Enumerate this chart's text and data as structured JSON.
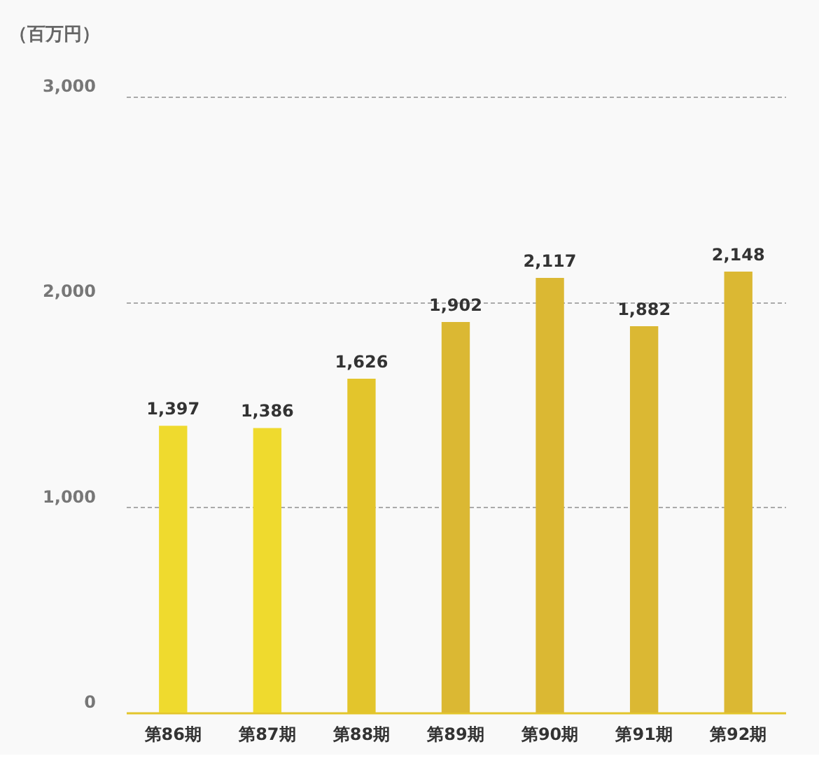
{
  "chart_data": {
    "type": "bar",
    "ylabel": "（百万円）",
    "categories": [
      "第86期",
      "第87期",
      "第88期",
      "第89期",
      "第90期",
      "第91期",
      "第92期"
    ],
    "values": [
      1397,
      1386,
      1626,
      1902,
      2117,
      1882,
      2148
    ],
    "value_labels": [
      "1,397",
      "1,386",
      "1,626",
      "1,902",
      "2,117",
      "1,882",
      "2,148"
    ],
    "colors": [
      "#efda2e",
      "#efda2e",
      "#e3c52c",
      "#dbb833",
      "#dbb833",
      "#dbb833",
      "#dbb833"
    ],
    "ylim": [
      0,
      3000
    ],
    "yticks": [
      0,
      {
        "value": 1000,
        "label": "1,000"
      },
      {
        "value": 2000,
        "label": "2,000"
      },
      {
        "value": 3000,
        "label": "3,000"
      }
    ],
    "grid": "y"
  }
}
